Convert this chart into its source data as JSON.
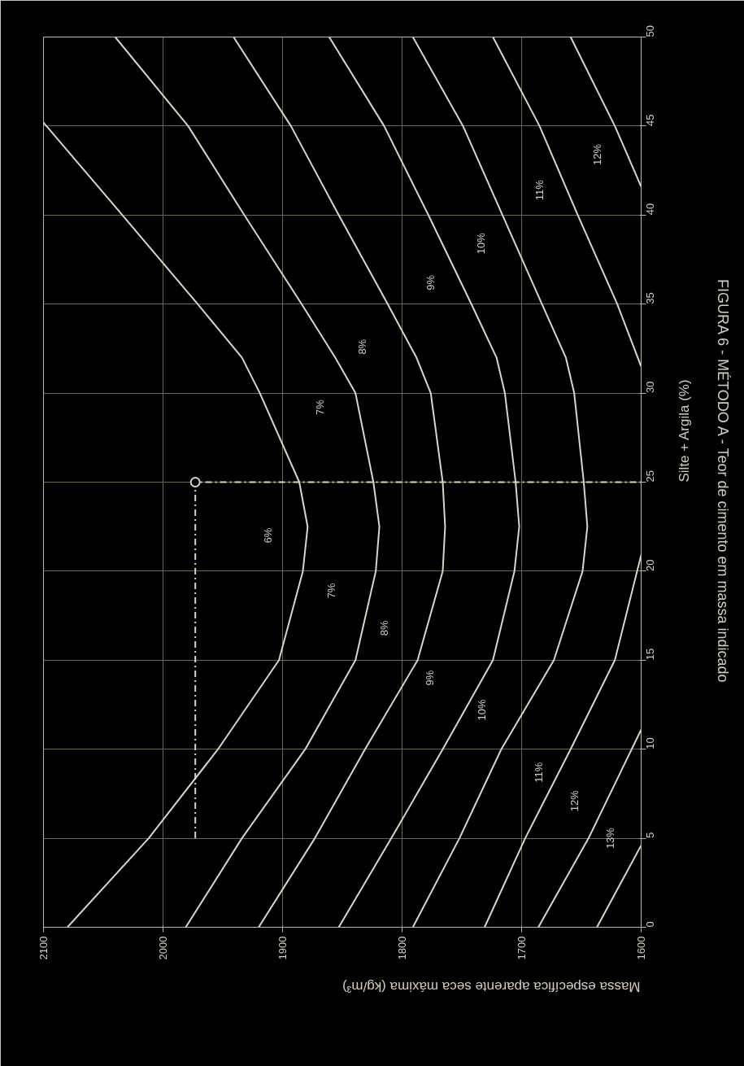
{
  "chart_data": {
    "type": "line",
    "title": "FIGURA 6 - MÉTODO A - Teor de cimento em massa indicado",
    "xlabel": "Massa específica aparente seca máxima (kg/m³)",
    "ylabel": "Silte + Argila (%)",
    "xlim": [
      2100,
      1600
    ],
    "xticks": [
      2100,
      2000,
      1900,
      1800,
      1700,
      1600
    ],
    "ylim": [
      0,
      50
    ],
    "yticks": [
      0,
      5,
      10,
      15,
      20,
      25,
      30,
      35,
      40,
      45,
      50
    ],
    "grid": true,
    "line_style": "solid",
    "series": [
      {
        "color": "#d9d5c9",
        "x": [
          2080,
          2012,
          1954,
          1903,
          1883,
          1879,
          1886,
          1919,
          1934,
          1971,
          2034,
          2100
        ],
        "values": [
          0,
          5,
          10,
          15,
          20,
          22.5,
          25,
          30,
          32,
          35,
          40,
          45.2
        ]
      },
      {
        "color": "#d9d5c9",
        "x": [
          1981,
          1934,
          1881,
          1839,
          1822,
          1819,
          1824,
          1839,
          1856,
          1884,
          1932,
          1979,
          2040
        ],
        "values": [
          0,
          5,
          10,
          15,
          20,
          22.5,
          25,
          30,
          32,
          35,
          40,
          45,
          50
        ]
      },
      {
        "color": "#d9d5c9",
        "x": [
          1920,
          1873,
          1831,
          1787,
          1766,
          1764,
          1766,
          1776,
          1788,
          1812,
          1853,
          1893,
          1941
        ],
        "values": [
          0,
          5,
          10,
          15,
          20,
          22.5,
          25,
          30,
          32,
          35,
          40,
          45,
          50
        ]
      },
      {
        "color": "#d9d5c9",
        "x": [
          1853,
          1809,
          1766,
          1724,
          1706,
          1702,
          1705,
          1714,
          1721,
          1742,
          1778,
          1815,
          1861
        ],
        "values": [
          0,
          5,
          10,
          15,
          20,
          22.5,
          25,
          30,
          32,
          35,
          40,
          45,
          50
        ]
      },
      {
        "color": "#d9d5c9",
        "x": [
          1791,
          1752,
          1717,
          1673,
          1649,
          1645,
          1648,
          1656,
          1663,
          1683,
          1716,
          1749,
          1791
        ],
        "values": [
          0,
          5,
          10,
          15,
          20,
          22.5,
          25,
          30,
          32,
          35,
          40,
          45,
          50
        ]
      },
      {
        "color": "#d9d5c9",
        "x": [
          1600,
          1620,
          1653,
          1685,
          1724
        ],
        "values": [
          31.5,
          35,
          40,
          45,
          50
        ]
      },
      {
        "color": "#d9d5c9",
        "x": [
          1600,
          1622,
          1659
        ],
        "values": [
          41.6,
          45,
          50
        ]
      },
      {
        "color": "#d9d5c9",
        "x": [
          1731,
          1697,
          1659,
          1622,
          1600
        ],
        "values": [
          0,
          5,
          10,
          15,
          20.9
        ]
      },
      {
        "color": "#d9d5c9",
        "x": [
          1686,
          1644,
          1600
        ],
        "values": [
          0,
          5,
          11.1
        ]
      },
      {
        "color": "#d9d5c9",
        "x": [
          1637,
          1600
        ],
        "values": [
          0,
          4.6
        ]
      },
      {
        "color": "#d9d5c9",
        "line_style": "dashed",
        "x": [
          1973,
          1973,
          1600
        ],
        "values": [
          5,
          25,
          25
        ]
      },
      {
        "color": "#d9d5c9",
        "type": "scatter",
        "marker": "circle",
        "x": [
          1973
        ],
        "values": [
          25
        ]
      }
    ],
    "annotations": [
      "6%",
      "7%",
      "8%",
      "9%",
      "10%",
      "11%",
      "12%",
      "13%",
      "7%",
      "8%",
      "9%",
      "10%",
      "11%",
      "12%"
    ]
  }
}
